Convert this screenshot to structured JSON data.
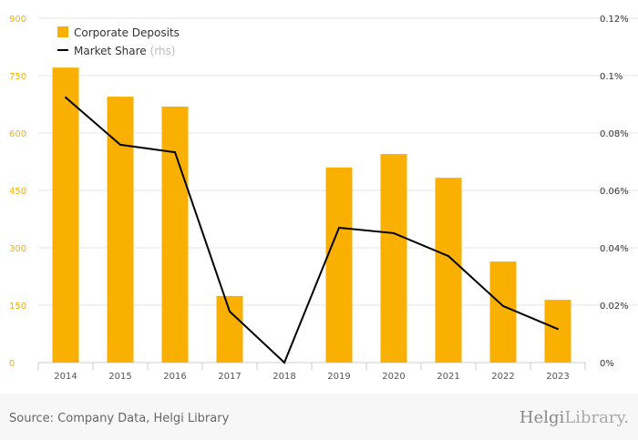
{
  "chart_data": {
    "type": "bar+line",
    "categories": [
      "2014",
      "2015",
      "2016",
      "2017",
      "2018",
      "2019",
      "2020",
      "2021",
      "2022",
      "2023"
    ],
    "series": [
      {
        "name": "Corporate Deposits",
        "type": "bar",
        "axis": "left",
        "color": "#f9b000",
        "values": [
          771,
          695,
          669,
          174,
          0,
          510,
          545,
          483,
          264,
          164
        ]
      },
      {
        "name": "Market Share",
        "suffix": "(rhs)",
        "type": "line",
        "axis": "right",
        "color": "#000000",
        "values": [
          0.0924,
          0.0759,
          0.0733,
          0.0178,
          0,
          0.047,
          0.0451,
          0.0371,
          0.0197,
          0.0117
        ]
      }
    ],
    "yleft": {
      "ylim": [
        0,
        900
      ],
      "ticks": [
        "0",
        "150",
        "300",
        "450",
        "600",
        "750",
        "900"
      ]
    },
    "yright": {
      "ylim": [
        0,
        0.12
      ],
      "ticks": [
        "0%",
        "0.02%",
        "0.04%",
        "0.06%",
        "0.08%",
        "0.1%",
        "0.12%"
      ]
    },
    "legend": "top-left",
    "grid": true
  },
  "footer": {
    "source": "Source: Company Data, Helgi Library",
    "logo_a": "Helgi",
    "logo_b": "Library."
  }
}
